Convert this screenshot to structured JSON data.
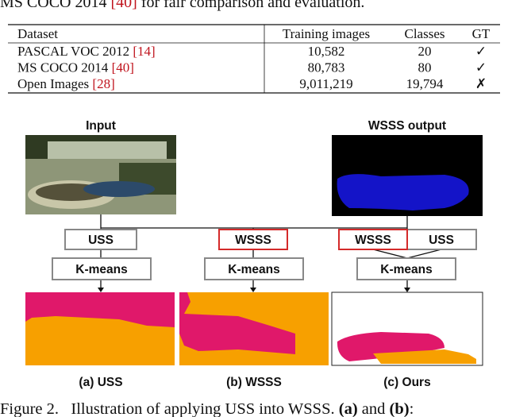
{
  "intro": {
    "pre": "MS COCO 2014",
    "cite": "[40]",
    "post": "for fair comparison and evaluation."
  },
  "table": {
    "header": [
      "Dataset",
      "Training images",
      "Classes",
      "GT"
    ],
    "rows": [
      {
        "dataset": "PASCAL VOC 2012",
        "cite": "[14]",
        "images": "10,582",
        "classes": "20",
        "gt": "✓"
      },
      {
        "dataset": "MS COCO 2014",
        "cite": "[40]",
        "images": "80,783",
        "classes": "80",
        "gt": "✓"
      },
      {
        "dataset": "Open Images",
        "cite": "[28]",
        "images": "9,011,219",
        "classes": "19,794",
        "gt": "✗"
      }
    ]
  },
  "figure": {
    "input_label": "Input",
    "output_label": "WSSS output",
    "boxes": [
      "USS",
      "WSSS",
      "WSSS",
      "USS"
    ],
    "kmeans": [
      "K-means",
      "K-means",
      "K-means"
    ],
    "panels": [
      {
        "tag": "(a)",
        "name": "USS"
      },
      {
        "tag": "(b)",
        "name": "WSSS"
      },
      {
        "tag": "(c)",
        "name": "Ours"
      }
    ]
  },
  "caption": {
    "label": "Figure 2.",
    "text": "Illustration of applying USS into WSSS.",
    "a": "(a)",
    "and": "and",
    "b": "(b)",
    "end": ":"
  }
}
